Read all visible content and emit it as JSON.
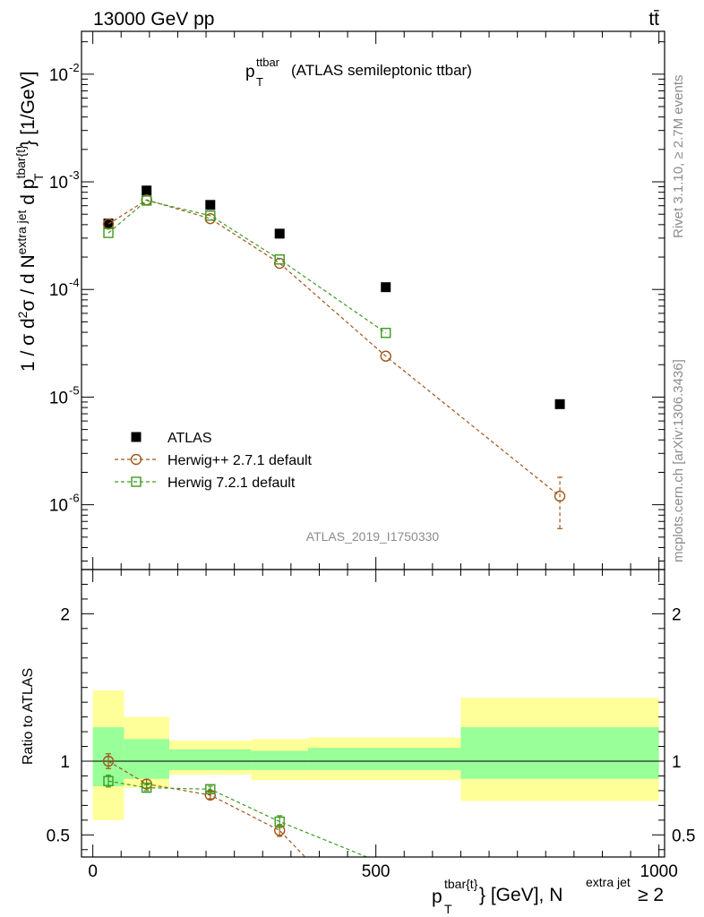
{
  "header": {
    "left": "13000 GeV pp",
    "right": "tt̄"
  },
  "side": {
    "rivet": "Rivet 3.1.10, ≥ 2.7M events",
    "mcplots": "mcplots.cern.ch [arXiv:1306.3436]"
  },
  "watermark": "ATLAS_2019_I1750330",
  "colors": {
    "atlas": "#000000",
    "herwigpp": "#a0561a",
    "herwig7": "#3c9a1e",
    "band_inner": "#99ff99",
    "band_outer": "#ffff99"
  },
  "chart_data": [
    {
      "type": "scatter",
      "title": "p_T^{ttbar} (ATLAS semileptonic ttbar)",
      "title_parts": {
        "p": "p",
        "sub": "T",
        "sup": "ttbar",
        "rest": "(ATLAS semileptonic ttbar)"
      },
      "yscale": "log",
      "ylim": [
        2.5e-07,
        0.025
      ],
      "xlim": [
        -20,
        1010
      ],
      "ylabel": "1 / σ d²σ / d N^{extra jet} d p_T^{tbar{t}} [1/GeV]",
      "ytick_labels": [
        "10",
        "-6",
        "10",
        "-5",
        "10",
        "-4",
        "10",
        "-3",
        "10",
        "-2"
      ],
      "yticks": [
        1e-06,
        1e-05,
        0.0001,
        0.001,
        0.01
      ],
      "legend": {
        "position": "bottom-left",
        "entries": [
          "ATLAS",
          "Herwig++ 2.7.1 default",
          "Herwig 7.2.1 default"
        ]
      },
      "series": [
        {
          "name": "ATLAS",
          "marker": "filled-square",
          "x": [
            27.5,
            95,
            207.5,
            330,
            517.5,
            825
          ],
          "y": [
            0.00041,
            0.00083,
            0.00061,
            0.00033,
            0.000105,
            8.6e-06
          ]
        },
        {
          "name": "Herwig++ 2.7.1 default",
          "marker": "open-circle",
          "line": "dashed",
          "x": [
            27.5,
            95,
            207.5,
            330,
            517.5,
            825
          ],
          "y": [
            0.000405,
            0.00068,
            0.000455,
            0.000175,
            2.4e-05,
            1.2e-06
          ],
          "yerr_last": [
            6e-07,
            1.8e-06
          ]
        },
        {
          "name": "Herwig 7.2.1 default",
          "marker": "open-square",
          "line": "dashed",
          "x": [
            27.5,
            95,
            207.5,
            330,
            517.5
          ],
          "y": [
            0.000335,
            0.00067,
            0.000485,
            0.00019,
            3.95e-05
          ]
        }
      ]
    },
    {
      "type": "scatter",
      "title": "Ratio to ATLAS",
      "ylabel": "Ratio to ATLAS",
      "ylim": [
        0.35,
        2.3
      ],
      "ytick_labels": [
        "0.5",
        "1",
        "2"
      ],
      "yticks": [
        0.5,
        1,
        2
      ],
      "xlim": [
        -20,
        1010
      ],
      "xlabel": "p_T^{tbar{t}} [GeV], N^{extra jet} ≥ 2",
      "xlabel_parts": {
        "p": "p",
        "sub": "T",
        "sup": "tbar{t}",
        "unit": "} [GeV], N",
        "sup2": "extra jet",
        "rest": " ≥ 2"
      },
      "xtick_labels": [
        "0",
        "500",
        "1000"
      ],
      "xticks": [
        0,
        500,
        1000
      ],
      "bands": {
        "edges": [
          0,
          55,
          135,
          280,
          380,
          650,
          1000
        ],
        "inner": [
          [
            0.83,
            1.23
          ],
          [
            0.88,
            1.15
          ],
          [
            0.94,
            1.08
          ],
          [
            0.94,
            1.07
          ],
          [
            0.94,
            1.09
          ],
          [
            0.88,
            1.23
          ]
        ],
        "outer": [
          [
            0.6,
            1.48
          ],
          [
            0.82,
            1.3
          ],
          [
            0.91,
            1.14
          ],
          [
            0.87,
            1.15
          ],
          [
            0.87,
            1.16
          ],
          [
            0.73,
            1.43
          ]
        ]
      },
      "series": [
        {
          "name": "Herwig++ 2.7.1 default",
          "marker": "open-circle",
          "x": [
            27.5,
            95,
            207.5,
            330
          ],
          "y": [
            1.0,
            0.845,
            0.77,
            0.53
          ],
          "err": [
            0.05,
            0.03,
            0.025,
            0.04
          ],
          "line_end": {
            "x": 375,
            "y": 0.35
          }
        },
        {
          "name": "Herwig 7.2.1 default",
          "marker": "open-square",
          "x": [
            27.5,
            95,
            207.5,
            330
          ],
          "y": [
            0.865,
            0.82,
            0.81,
            0.59
          ],
          "err": [
            0.04,
            0.02,
            0.02,
            0.04
          ],
          "line_end": {
            "x": 484,
            "y": 0.35
          }
        }
      ]
    }
  ]
}
